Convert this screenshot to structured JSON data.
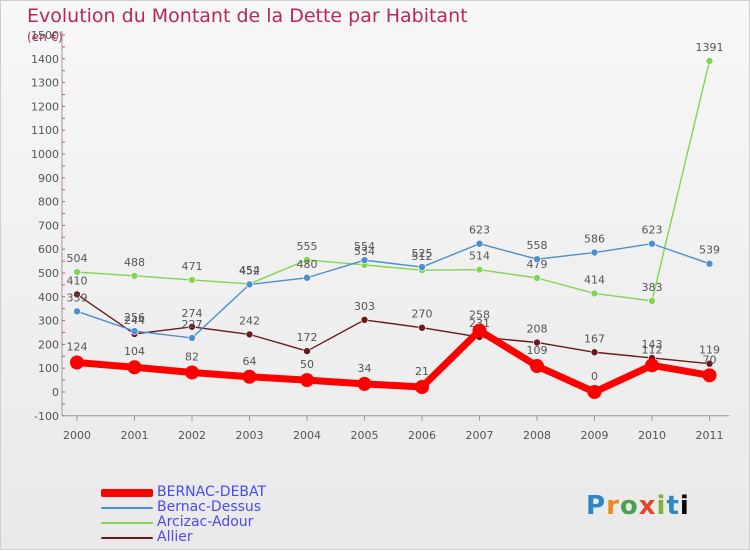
{
  "title": "Evolution du Montant de la Dette par Habitant",
  "subtitle": "(en €)",
  "logo_text": "Proxiti",
  "chart_data": {
    "type": "line",
    "categories": [
      "2000",
      "2001",
      "2002",
      "2003",
      "2004",
      "2005",
      "2006",
      "2007",
      "2008",
      "2009",
      "2010",
      "2011"
    ],
    "ylim": [
      -100,
      1500
    ],
    "yticks": [
      -100,
      0,
      100,
      200,
      300,
      400,
      500,
      600,
      700,
      800,
      900,
      1000,
      1100,
      1200,
      1300,
      1400,
      1500
    ],
    "grid": false,
    "legend_position": "bottom-left",
    "series": [
      {
        "name": "BERNAC-DEBAT",
        "color": "#ff0000",
        "values": [
          124,
          104,
          82,
          64,
          50,
          34,
          21,
          258,
          109,
          0,
          112,
          70
        ]
      },
      {
        "name": "Bernac-Dessus",
        "color": "#4c8ed0",
        "values": [
          339,
          256,
          227,
          452,
          480,
          554,
          525,
          623,
          558,
          586,
          623,
          539
        ]
      },
      {
        "name": "Arcizac-Adour",
        "color": "#82d452",
        "values": [
          504,
          488,
          471,
          454,
          555,
          534,
          512,
          514,
          479,
          414,
          383,
          1391
        ]
      },
      {
        "name": "Allier",
        "color": "#6a1a1e",
        "values": [
          410,
          244,
          274,
          242,
          172,
          303,
          270,
          231,
          208,
          167,
          143,
          119
        ]
      }
    ]
  }
}
